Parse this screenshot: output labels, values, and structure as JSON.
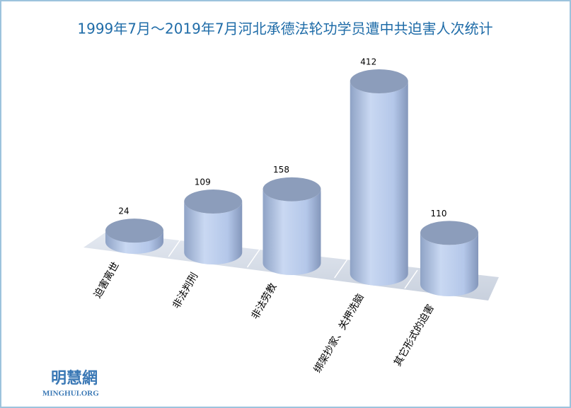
{
  "chart_data": {
    "type": "bar3d",
    "title": "1999年7月～2019年7月河北承德法轮功学员遭中共迫害人次统计",
    "categories": [
      "迫害离世",
      "非法判刑",
      "非法劳教",
      "绑架抄家、关押洗脑",
      "其它形式的迫害"
    ],
    "values": [
      24,
      109,
      158,
      412,
      110
    ],
    "color": "#a9bde0"
  },
  "watermark": {
    "name": "明慧網",
    "url": "MINGHUI.ORG"
  }
}
